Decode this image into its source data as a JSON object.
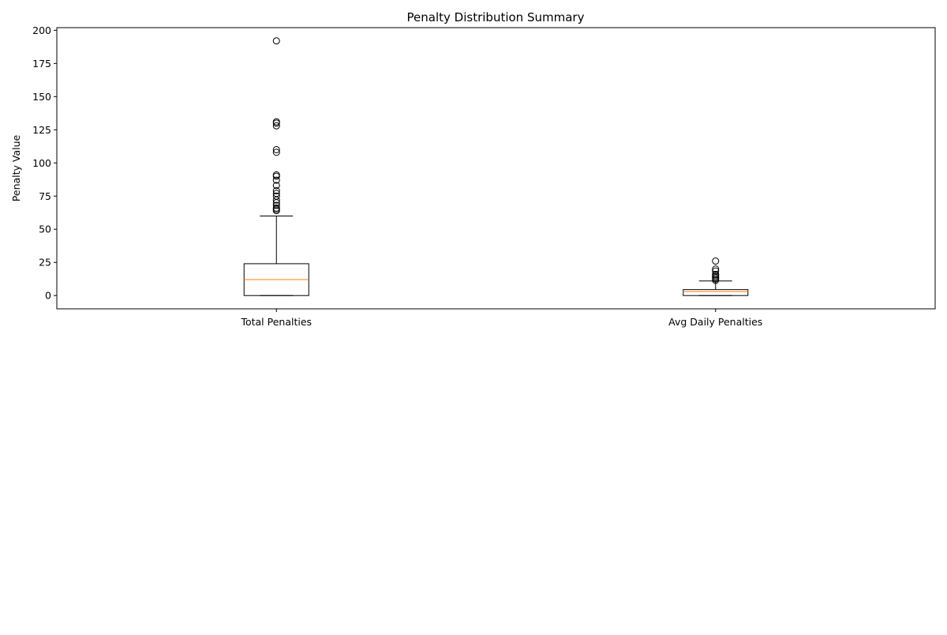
{
  "chart_data": {
    "type": "box",
    "title": "Penalty Distribution Summary",
    "xlabel": "",
    "ylabel": "Penalty Value",
    "ylim": [
      -10,
      202
    ],
    "yticks": [
      0,
      25,
      50,
      75,
      100,
      125,
      150,
      175,
      200
    ],
    "categories": [
      "Total Penalties",
      "Avg Daily Penalties"
    ],
    "boxes": [
      {
        "category": "Total Penalties",
        "whisker_low": 0,
        "q1": 0,
        "median": 12,
        "q3": 24,
        "whisker_high": 60,
        "outliers": [
          64,
          65,
          66,
          68,
          70,
          72,
          75,
          77,
          79,
          83,
          87,
          90,
          91,
          108,
          110,
          128,
          130,
          131,
          192
        ]
      },
      {
        "category": "Avg Daily Penalties",
        "whisker_low": 0,
        "q1": 0,
        "median": 3,
        "q3": 4.5,
        "whisker_high": 11,
        "outliers": [
          11.5,
          12.5,
          13.5,
          14.5,
          15.5,
          16,
          18.5,
          20,
          26
        ]
      }
    ],
    "box_edge_color": "#000000",
    "median_color": "#ff7f0e",
    "grid": false,
    "legend": "none"
  }
}
